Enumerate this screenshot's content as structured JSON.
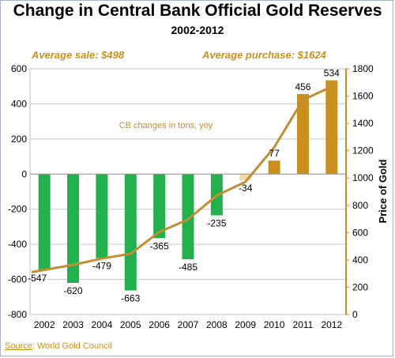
{
  "chart_data": {
    "type": "bar",
    "title": "Change in Central Bank Official Gold Reserves",
    "subtitle": "2002-2012",
    "categories": [
      "2002",
      "2003",
      "2004",
      "2005",
      "2006",
      "2007",
      "2008",
      "2009",
      "2010",
      "2011",
      "2012"
    ],
    "series": [
      {
        "name": "CB changes in tons, yoy",
        "type": "bar",
        "values": [
          -547,
          -620,
          -479,
          -663,
          -365,
          -485,
          -235,
          -34,
          77,
          456,
          534
        ],
        "data_labels": [
          "-547",
          "-620",
          "-479",
          "-663",
          "-365",
          "-485",
          "-235",
          "-34",
          "77",
          "456",
          "534"
        ]
      },
      {
        "type": "line",
        "axis": "right",
        "values": [
          310,
          364,
          410,
          445,
          604,
          697,
          872,
          972,
          1225,
          1572,
          1669
        ]
      }
    ],
    "ylim": [
      -800,
      600
    ],
    "yticks": [
      "600",
      "400",
      "200",
      "0",
      "-200",
      "-400",
      "-600",
      "-800"
    ],
    "y2lim": [
      0,
      1800
    ],
    "y2ticks": [
      "1800",
      "1600",
      "1400",
      "1200",
      "1000",
      "800",
      "600",
      "400",
      "200",
      "0"
    ],
    "y2label": "Price of Gold",
    "grid": true,
    "colors": {
      "negative": "#22b14c",
      "positive": "#c9901e",
      "faded": "#f1d9a0",
      "line": "#c08e35",
      "axis_right": "#c9901e"
    }
  },
  "annotations": {
    "avg_sale": "Average sale: $498",
    "avg_purchase": "Average purchase: $1624",
    "series_note": "CB changes in tons, yoy"
  },
  "footer": {
    "source_label": "Source",
    "source_text": ": World Gold Council"
  }
}
